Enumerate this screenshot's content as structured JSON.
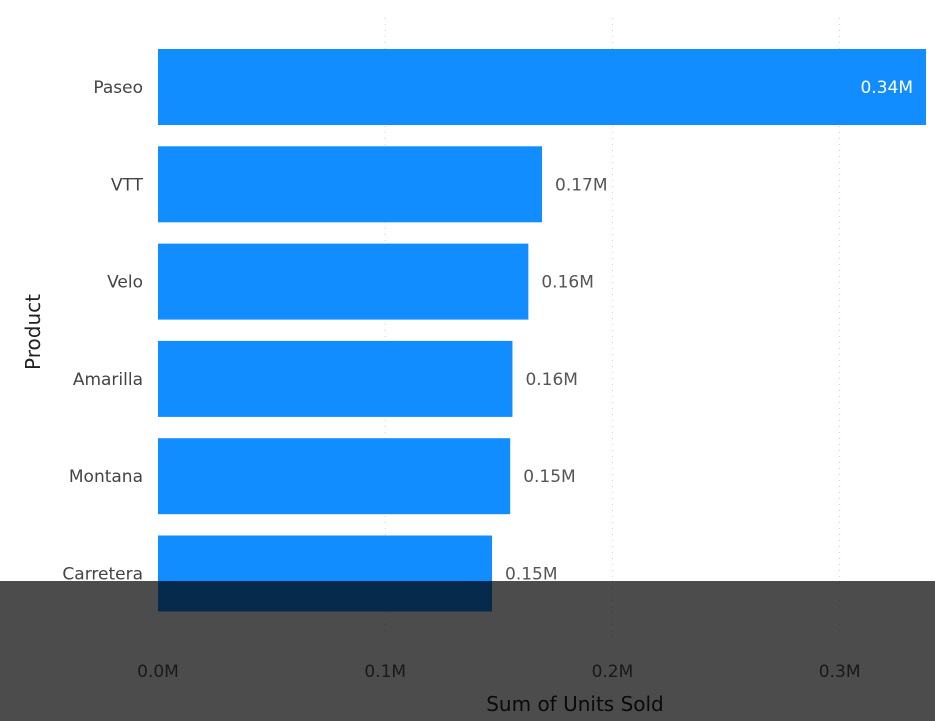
{
  "chart_data": {
    "type": "bar",
    "orientation": "horizontal",
    "categories": [
      "Paseo",
      "VTT",
      "Velo",
      "Amarilla",
      "Montana",
      "Carretera"
    ],
    "values": [
      338000,
      169000,
      163000,
      156000,
      155000,
      147000
    ],
    "data_labels": [
      "0.34M",
      "0.17M",
      "0.16M",
      "0.16M",
      "0.15M",
      "0.15M"
    ],
    "xlabel": "Sum of Units Sold",
    "ylabel": "Product",
    "xlim": [
      0,
      338000
    ],
    "x_ticks": [
      0,
      100000,
      200000,
      300000
    ],
    "x_tick_labels": [
      "0.0M",
      "0.1M",
      "0.2M",
      "0.3M"
    ],
    "grid": true,
    "bar_color": "#118DFF",
    "inside_label_color": "#ffffff",
    "outside_label_color": "#555555"
  }
}
